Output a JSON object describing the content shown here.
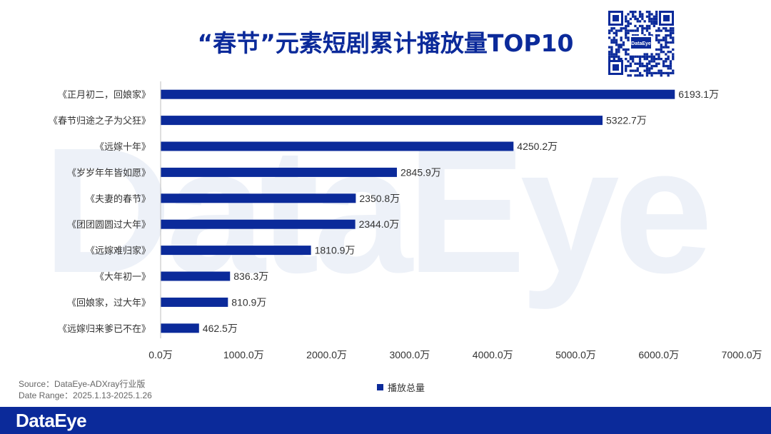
{
  "title": "“春节”元素短剧累计播放量TOP10",
  "brand": {
    "watermark_text": "DataEye",
    "logo_text": "DataEye",
    "qr_center_text": "DataEye"
  },
  "source": {
    "line1": "Source：DataEye-ADXray行业版",
    "line2": "Date Range：2025.1.13-2025.1.26"
  },
  "legend": {
    "label": "播放总量",
    "color": "#0b2a9a"
  },
  "colors": {
    "bar": "#0b2a9a",
    "title": "#0b2a9a",
    "grid": "#d9d9d9"
  },
  "chart_data": {
    "type": "bar",
    "orientation": "horizontal",
    "title": "“春节”元素短剧累计播放量TOP10",
    "categories": [
      "《正月初二，回娘家》",
      "《春节归途之子为父狂》",
      "《远嫁十年》",
      "《岁岁年年皆如愿》",
      "《夫妻的春节》",
      "《团团圆圆过大年》",
      "《远嫁难归家》",
      "《大年初一》",
      "《回娘家，过大年》",
      "《远嫁归来爹已不在》"
    ],
    "series": [
      {
        "name": "播放总量",
        "values": [
          6193.1,
          5322.7,
          4250.2,
          2845.9,
          2350.8,
          2344.0,
          1810.9,
          836.3,
          810.9,
          462.5
        ],
        "labels": [
          "6193.1万",
          "5322.7万",
          "4250.2万",
          "2845.9万",
          "2350.8万",
          "2344.0万",
          "1810.9万",
          "836.3万",
          "810.9万",
          "462.5万"
        ]
      }
    ],
    "xlim": [
      0,
      7000
    ],
    "xticks": [
      0,
      1000,
      2000,
      3000,
      4000,
      5000,
      6000,
      7000
    ],
    "xtick_labels": [
      "0.0万",
      "1000.0万",
      "2000.0万",
      "3000.0万",
      "4000.0万",
      "5000.0万",
      "6000.0万",
      "7000.0万"
    ],
    "xlabel": "",
    "ylabel": "",
    "legend": "bottom-center",
    "grid": false
  }
}
